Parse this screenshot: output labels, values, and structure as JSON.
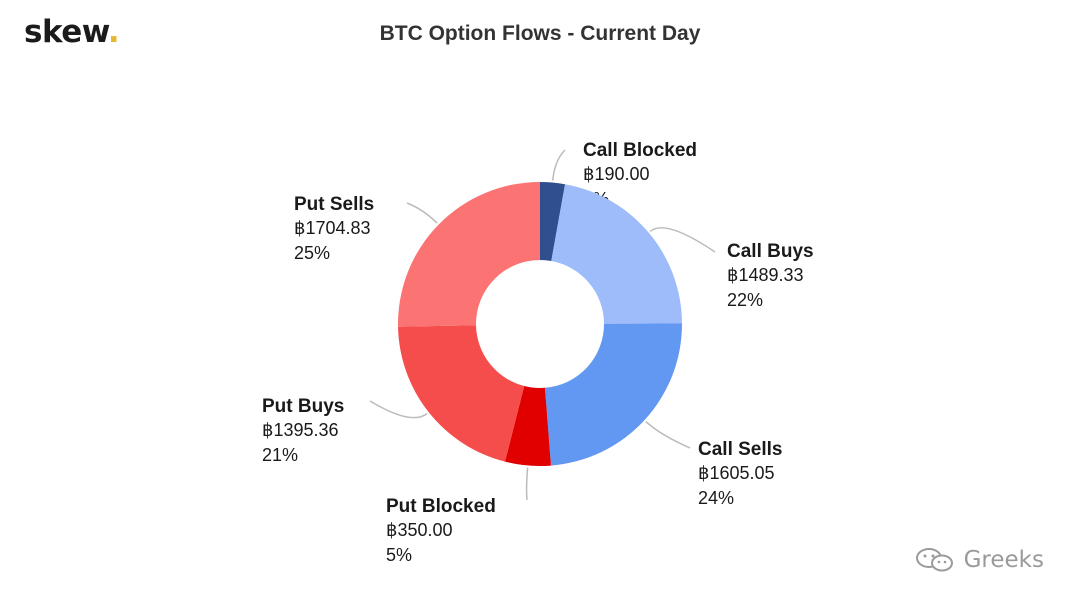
{
  "brand": {
    "name": "skew",
    "dot": "."
  },
  "watermark": {
    "text": "Greeks",
    "icon": "wechat-icon"
  },
  "chart_data": {
    "type": "pie",
    "donut": true,
    "title": "BTC Option Flows - Current Day",
    "slices": [
      {
        "label": "Call Blocked",
        "value": 190.0,
        "value_text": "฿190.00",
        "percent_text": "3%",
        "color": "#2f4f8f"
      },
      {
        "label": "Call Buys",
        "value": 1489.33,
        "value_text": "฿1489.33",
        "percent_text": "22%",
        "color": "#9dbcf9"
      },
      {
        "label": "Call Sells",
        "value": 1605.05,
        "value_text": "฿1605.05",
        "percent_text": "24%",
        "color": "#6398f2"
      },
      {
        "label": "Put Blocked",
        "value": 350.0,
        "value_text": "฿350.00",
        "percent_text": "5%",
        "color": "#e00000"
      },
      {
        "label": "Put Buys",
        "value": 1395.36,
        "value_text": "฿1395.36",
        "percent_text": "21%",
        "color": "#f54c4c"
      },
      {
        "label": "Put Sells",
        "value": 1704.83,
        "value_text": "฿1704.83",
        "percent_text": "25%",
        "color": "#fb7373"
      }
    ]
  }
}
